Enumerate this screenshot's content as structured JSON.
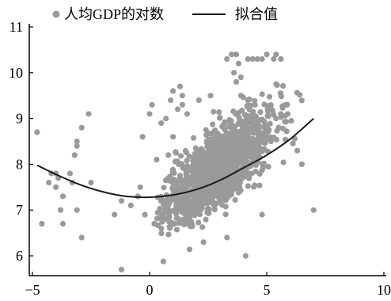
{
  "chart_data": {
    "type": "scatter",
    "legend": {
      "placement": "top",
      "items": [
        {
          "label": "人均GDP的对数",
          "marker": "dot",
          "color": "#9a9a9a"
        },
        {
          "label": "拟合值",
          "marker": "line",
          "color": "#1a1a1a"
        }
      ]
    },
    "xlim": [
      -5.3,
      10
    ],
    "ylim": [
      5.7,
      11.1
    ],
    "xticks": [
      -5,
      0,
      5,
      10
    ],
    "yticks": [
      6,
      7,
      8,
      9,
      10,
      11
    ],
    "xtick_labels": [
      "−5",
      "0",
      "5",
      "10"
    ],
    "ytick_labels": [
      "6",
      "7",
      "8",
      "9",
      "10",
      "11"
    ],
    "grid": false,
    "fit_line": {
      "color": "#1a1a1a",
      "x": [
        -4.8,
        -4,
        -3,
        -2,
        -1,
        0,
        1,
        2,
        3,
        4,
        5,
        6,
        7
      ],
      "y": [
        7.98,
        7.78,
        7.56,
        7.4,
        7.3,
        7.28,
        7.33,
        7.45,
        7.65,
        7.92,
        8.2,
        8.55,
        9.0
      ]
    },
    "series": [
      {
        "color": "#9a9a9a",
        "cloud": {
          "x_mean": 3.0,
          "x_sd": 1.1,
          "y_base": 6.8,
          "y_slope": 0.38,
          "y_sd": 0.4,
          "count": 1400,
          "x_min": 0.3,
          "x_max": 6.8
        },
        "points": [
          {
            "x": -4.8,
            "y": 8.7
          },
          {
            "x": -4.6,
            "y": 6.7
          },
          {
            "x": -4.3,
            "y": 7.6
          },
          {
            "x": -4.2,
            "y": 7.8
          },
          {
            "x": -4.0,
            "y": 7.8
          },
          {
            "x": -4.0,
            "y": 7.5
          },
          {
            "x": -3.9,
            "y": 7.7
          },
          {
            "x": -3.8,
            "y": 7.0
          },
          {
            "x": -3.7,
            "y": 6.7
          },
          {
            "x": -3.7,
            "y": 7.3
          },
          {
            "x": -3.4,
            "y": 7.8
          },
          {
            "x": -3.3,
            "y": 7.6
          },
          {
            "x": -3.2,
            "y": 8.2
          },
          {
            "x": -3.1,
            "y": 8.4
          },
          {
            "x": -3.1,
            "y": 8.5
          },
          {
            "x": -3.1,
            "y": 7.0
          },
          {
            "x": -2.9,
            "y": 8.8
          },
          {
            "x": -2.9,
            "y": 6.4
          },
          {
            "x": -2.6,
            "y": 9.1
          },
          {
            "x": -2.5,
            "y": 7.6
          },
          {
            "x": -1.5,
            "y": 6.9
          },
          {
            "x": -1.2,
            "y": 7.2
          },
          {
            "x": -1.2,
            "y": 5.7
          },
          {
            "x": -0.8,
            "y": 7.1
          },
          {
            "x": -0.5,
            "y": 7.3
          },
          {
            "x": -0.4,
            "y": 7.5
          },
          {
            "x": -0.3,
            "y": 8.6
          },
          {
            "x": -0.2,
            "y": 6.9
          },
          {
            "x": 0.0,
            "y": 9.1
          },
          {
            "x": 0.1,
            "y": 9.3
          },
          {
            "x": 0.2,
            "y": 6.7
          },
          {
            "x": 0.3,
            "y": 8.1
          },
          {
            "x": 0.5,
            "y": 8.9
          },
          {
            "x": 0.7,
            "y": 9.0
          },
          {
            "x": 1.0,
            "y": 8.6
          },
          {
            "x": 1.4,
            "y": 9.3
          },
          {
            "x": 1.3,
            "y": 9.7
          },
          {
            "x": 1.2,
            "y": 9.2
          },
          {
            "x": 1.6,
            "y": 9.1
          },
          {
            "x": 1.4,
            "y": 9.5
          },
          {
            "x": 1.0,
            "y": 9.6
          },
          {
            "x": 0.9,
            "y": 9.4
          },
          {
            "x": 0.8,
            "y": 8.2
          },
          {
            "x": 2.1,
            "y": 9.4
          },
          {
            "x": 2.6,
            "y": 9.5
          },
          {
            "x": 3.3,
            "y": 10.3
          },
          {
            "x": 3.5,
            "y": 10.4
          },
          {
            "x": 3.7,
            "y": 10.4
          },
          {
            "x": 3.6,
            "y": 10.0
          },
          {
            "x": 3.7,
            "y": 9.8
          },
          {
            "x": 3.8,
            "y": 10.2
          },
          {
            "x": 3.9,
            "y": 9.9
          },
          {
            "x": 4.2,
            "y": 10.3
          },
          {
            "x": 4.4,
            "y": 10.3
          },
          {
            "x": 4.6,
            "y": 10.3
          },
          {
            "x": 4.8,
            "y": 10.3
          },
          {
            "x": 5.0,
            "y": 10.4
          },
          {
            "x": 5.3,
            "y": 10.3
          },
          {
            "x": 5.4,
            "y": 10.4
          },
          {
            "x": 5.6,
            "y": 10.3
          },
          {
            "x": 3.9,
            "y": 9.5
          },
          {
            "x": 4.2,
            "y": 9.4
          },
          {
            "x": 4.5,
            "y": 9.3
          },
          {
            "x": 5.2,
            "y": 9.2
          },
          {
            "x": 5.6,
            "y": 9.1
          },
          {
            "x": 5.9,
            "y": 9.1
          },
          {
            "x": 6.3,
            "y": 8.3
          },
          {
            "x": 6.5,
            "y": 8.0
          },
          {
            "x": 7.0,
            "y": 7.0
          },
          {
            "x": 4.1,
            "y": 6.0
          },
          {
            "x": 3.3,
            "y": 6.4
          },
          {
            "x": 2.3,
            "y": 6.3
          },
          {
            "x": 0.5,
            "y": 6.6
          },
          {
            "x": 4.8,
            "y": 6.9
          }
        ]
      }
    ]
  }
}
